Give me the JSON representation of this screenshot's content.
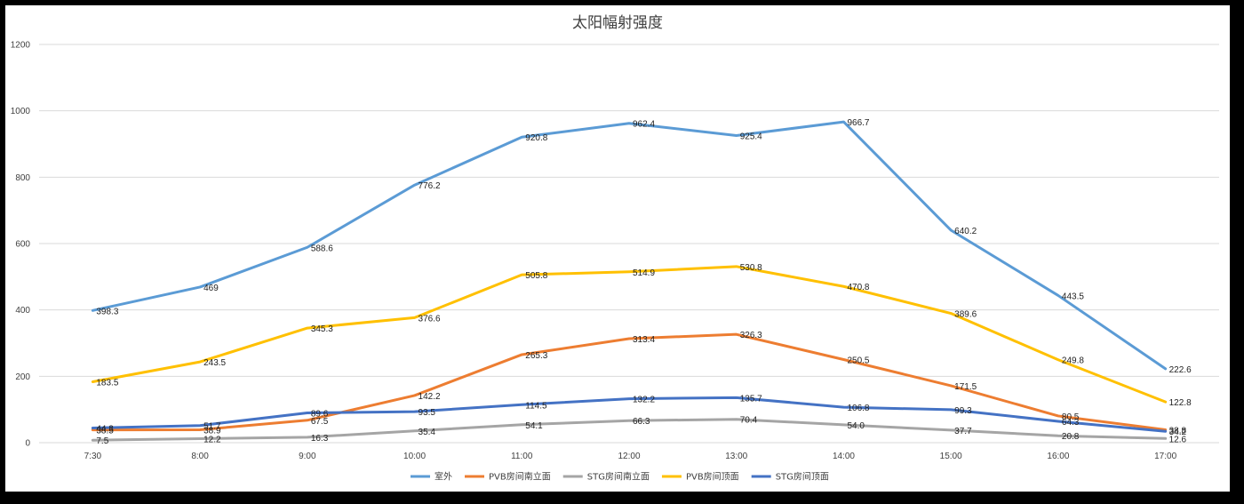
{
  "chart_data": {
    "type": "line",
    "title": "太阳幅射强度",
    "xlabel": "",
    "ylabel": "",
    "categories": [
      "7:30",
      "8:00",
      "9:00",
      "10:00",
      "11:00",
      "12:00",
      "13:00",
      "14:00",
      "15:00",
      "16:00",
      "17:00"
    ],
    "ylim": [
      0,
      1200
    ],
    "yticks": [
      "0",
      "200",
      "400",
      "600",
      "800",
      "1000",
      "1200"
    ],
    "grid": true,
    "legend_position": "bottom",
    "series": [
      {
        "name": "室外",
        "color": "#5b9bd5",
        "values": [
          398.3,
          469,
          588.6,
          776.2,
          920.8,
          962.4,
          925.4,
          966.7,
          640.2,
          443.5,
          222.6
        ],
        "labels": [
          "398.3",
          "469",
          "588.6",
          "776.2",
          "920.8",
          "962.4",
          "925.4",
          "966.7",
          "640.2",
          "443.5",
          "222.6"
        ]
      },
      {
        "name": "PVB房间南立面",
        "color": "#ed7d31",
        "values": [
          38.5,
          38.9,
          67.5,
          142.2,
          265.3,
          313.4,
          326.3,
          250.5,
          171.5,
          80.5,
          38.8
        ],
        "labels": [
          "38.5",
          "38.9",
          "67.5",
          "142.2",
          "265.3",
          "313.4",
          "326.3",
          "250.5",
          "171.5",
          "80.5",
          "38.8"
        ]
      },
      {
        "name": "STG房间南立面",
        "color": "#a5a5a5",
        "values": [
          7.5,
          12.2,
          16.3,
          35.4,
          54.1,
          66.3,
          70.4,
          54.0,
          37.7,
          20.8,
          12.6
        ],
        "labels": [
          "7.5",
          "12.2",
          "16.3",
          "35.4",
          "54.1",
          "66.3",
          "70.4",
          "54.0",
          "37.7",
          "20.8",
          "12.6"
        ]
      },
      {
        "name": "PVB房间顶面",
        "color": "#ffc000",
        "values": [
          183.5,
          243.5,
          345.3,
          376.6,
          505.8,
          514.9,
          530.8,
          470.8,
          389.6,
          249.8,
          122.8
        ],
        "labels": [
          "183.5",
          "243.5",
          "345.3",
          "376.6",
          "505.8",
          "514.9",
          "530.8",
          "470.8",
          "389.6",
          "249.8",
          "122.8"
        ]
      },
      {
        "name": "STG房间顶面",
        "color": "#4472c4",
        "values": [
          44.3,
          51.7,
          89.6,
          93.5,
          114.5,
          132.2,
          135.7,
          106.8,
          99.3,
          64.3,
          34.2
        ],
        "labels": [
          "44.3",
          "51.7",
          "89.6",
          "93.5",
          "114.5",
          "132.2",
          "135.7",
          "106.8",
          "99.3",
          "64.3",
          "34.2"
        ]
      }
    ]
  }
}
